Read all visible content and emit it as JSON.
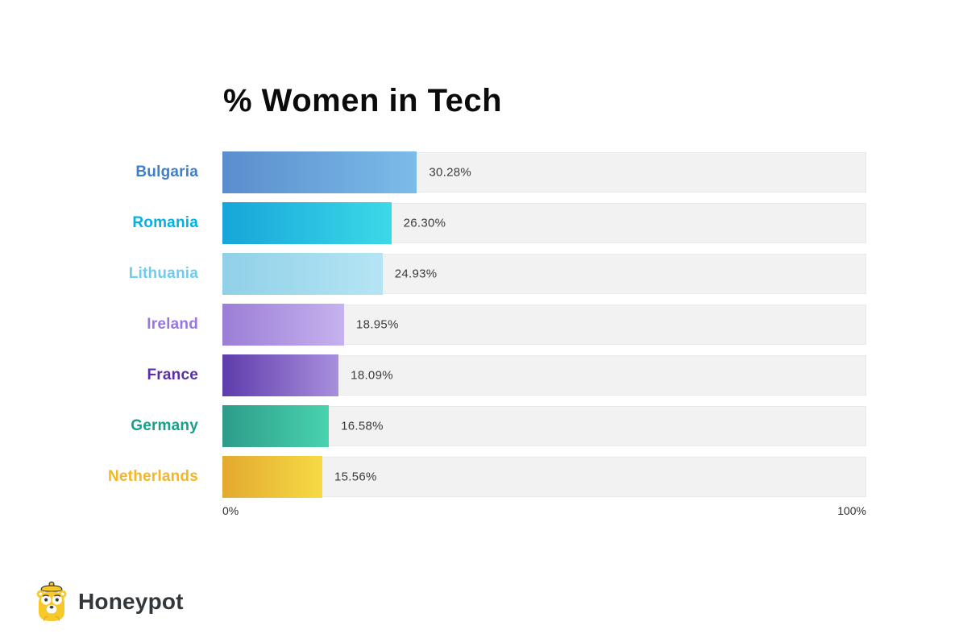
{
  "logo": {
    "brand": "Honeypot",
    "icon": "honeypot-bear-icon",
    "icon_color": "#f7c928"
  },
  "chart_data": {
    "type": "bar",
    "orientation": "horizontal",
    "title": "% Women in Tech",
    "categories": [
      "Bulgaria",
      "Romania",
      "Lithuania",
      "Ireland",
      "France",
      "Germany",
      "Netherlands"
    ],
    "values": [
      30.28,
      26.3,
      24.93,
      18.95,
      18.09,
      16.58,
      15.56
    ],
    "value_labels": [
      "30.28%",
      "26.30%",
      "24.93%",
      "18.95%",
      "18.09%",
      "16.58%",
      "15.56%"
    ],
    "xlim": [
      0,
      100
    ],
    "tick_labels": [
      "0%",
      "100%"
    ],
    "grid": false,
    "legend": false,
    "track_color": "#f2f2f3",
    "track_border_color": "#e9e9ea",
    "value_text_color": "#3b3b3b",
    "bar_styles": [
      {
        "label_color": "#3e7fcc",
        "gradient_start": "#5a8dcd",
        "gradient_end": "#7cbce9"
      },
      {
        "label_color": "#00b2e3",
        "gradient_start": "#16a5d9",
        "gradient_end": "#3cd9e8"
      },
      {
        "label_color": "#6bcdf2",
        "gradient_start": "#90d0e8",
        "gradient_end": "#b5e5f4"
      },
      {
        "label_color": "#9678e0",
        "gradient_start": "#9b7ed6",
        "gradient_end": "#c6b2ee"
      },
      {
        "label_color": "#5c2da5",
        "gradient_start": "#5f3cab",
        "gradient_end": "#a88fdd"
      },
      {
        "label_color": "#17a08c",
        "gradient_start": "#2d9c8a",
        "gradient_end": "#48d3ae"
      },
      {
        "label_color": "#f4b723",
        "gradient_start": "#e3a92e",
        "gradient_end": "#f6da45"
      }
    ]
  }
}
